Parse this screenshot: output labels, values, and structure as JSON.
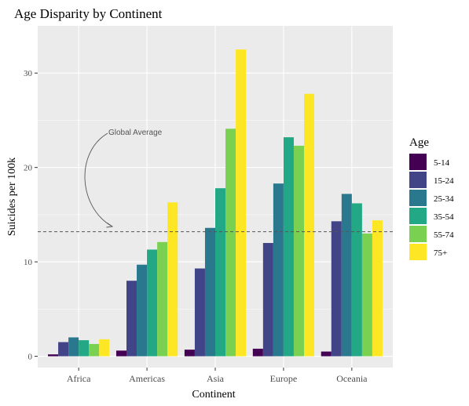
{
  "chart_data": {
    "type": "bar",
    "title": "Age Disparity by Continent",
    "xlabel": "Continent",
    "ylabel": "Suicides per 100k",
    "categories": [
      "Africa",
      "Americas",
      "Asia",
      "Europe",
      "Oceania"
    ],
    "ylim": [
      -1.2,
      35
    ],
    "yticks": [
      0,
      10,
      20,
      30
    ],
    "ytick_labels": [
      "0",
      "10",
      "20",
      "30"
    ],
    "grid": true,
    "legend": {
      "title": "Age",
      "position": "right"
    },
    "series": [
      {
        "name": "5-14",
        "color": "#440154",
        "values": [
          0.2,
          0.6,
          0.7,
          0.8,
          0.5
        ]
      },
      {
        "name": "15-24",
        "color": "#414487",
        "values": [
          1.5,
          8.0,
          9.3,
          12.0,
          14.3
        ]
      },
      {
        "name": "25-34",
        "color": "#2A788E",
        "values": [
          2.0,
          9.7,
          13.6,
          18.3,
          17.2
        ]
      },
      {
        "name": "35-54",
        "color": "#22A884",
        "values": [
          1.7,
          11.3,
          17.8,
          23.2,
          16.2
        ]
      },
      {
        "name": "55-74",
        "color": "#7AD151",
        "values": [
          1.3,
          12.1,
          24.1,
          22.3,
          13.0
        ]
      },
      {
        "name": "75+",
        "color": "#FDE725",
        "values": [
          1.8,
          16.3,
          32.5,
          27.8,
          14.4
        ]
      }
    ],
    "reference_line": {
      "value": 13.2,
      "style": "dashed"
    },
    "annotation": {
      "text": "Global Average"
    }
  }
}
